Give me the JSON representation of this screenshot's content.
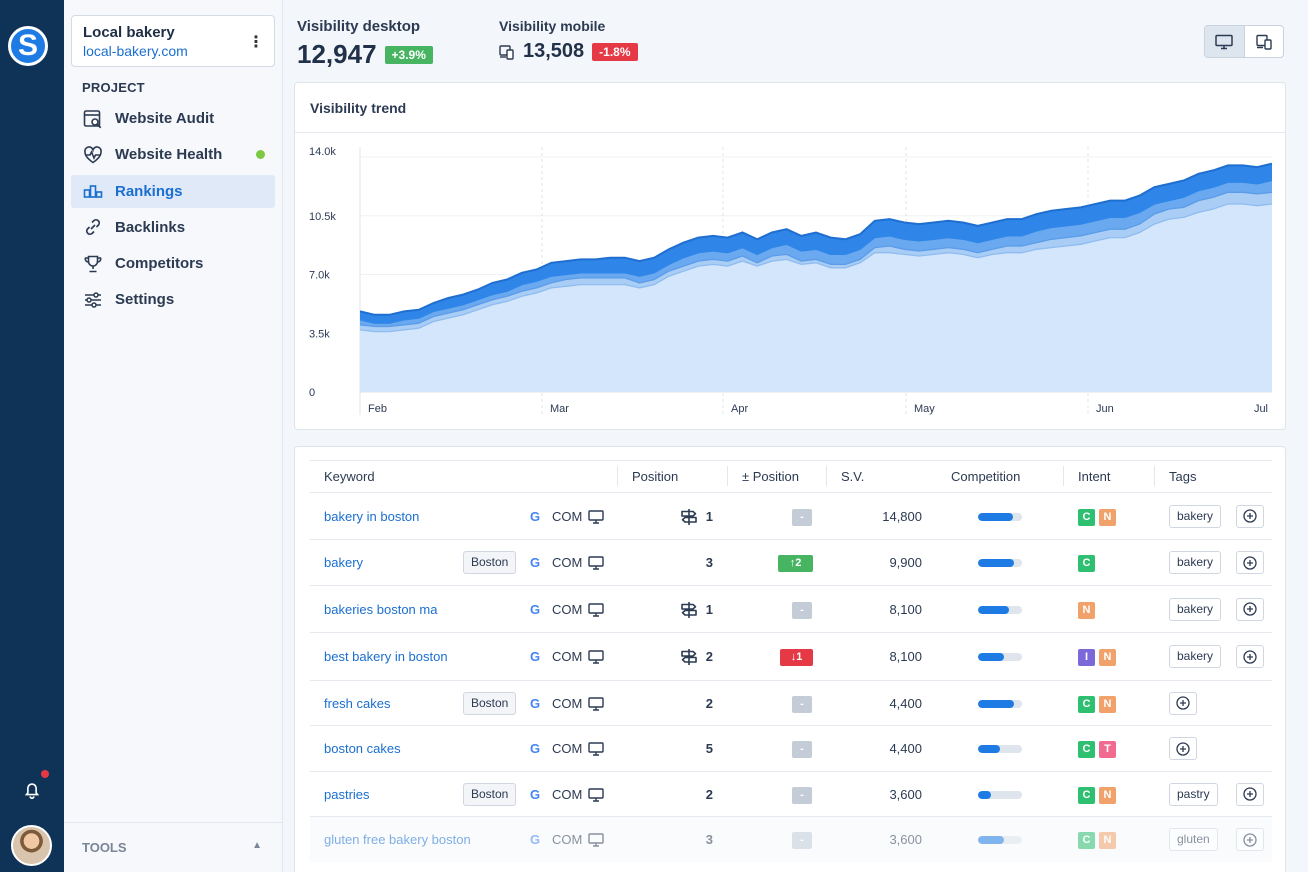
{
  "app": {
    "logo_letter": "S"
  },
  "project": {
    "name": "Local bakery",
    "url": "local-bakery.com"
  },
  "sidebar": {
    "section": "PROJECT",
    "items": [
      {
        "label": "Website Audit",
        "icon": "audit-icon"
      },
      {
        "label": "Website Health",
        "icon": "heartbeat-icon",
        "status": "green-dot"
      },
      {
        "label": "Rankings",
        "icon": "rankings-icon",
        "active": true
      },
      {
        "label": "Backlinks",
        "icon": "link-icon"
      },
      {
        "label": "Competitors",
        "icon": "trophy-icon"
      },
      {
        "label": "Settings",
        "icon": "sliders-icon"
      }
    ],
    "tools_label": "TOOLS"
  },
  "metrics": {
    "desktop": {
      "title": "Visibility desktop",
      "value": "12,947",
      "delta": "+3.9%"
    },
    "mobile": {
      "title": "Visibility mobile",
      "value": "13,508",
      "delta": "-1.8%"
    }
  },
  "colors": {
    "accent": "#1a6fd1",
    "up": "#47b462",
    "down": "#e63946",
    "intent_C": "#2fbf71",
    "intent_N": "#f0a26a",
    "intent_I": "#7c68d8",
    "intent_T": "#f06b8f"
  },
  "chart": {
    "title": "Visibility trend",
    "y_ticks": [
      "14.0k",
      "10.5k",
      "7.0k",
      "3.5k",
      "0"
    ],
    "x_ticks": [
      "Feb",
      "Mar",
      "Apr",
      "May",
      "Jun",
      "Jul"
    ]
  },
  "chart_data": {
    "type": "area",
    "title": "Visibility trend",
    "xlabel": "",
    "ylabel": "",
    "ylim": [
      0,
      14000
    ],
    "x_range": [
      "Feb",
      "Jul"
    ],
    "grid": true,
    "stacked": true,
    "series": [
      {
        "values": [
          3700,
          3600,
          3600,
          3700,
          3800,
          4200,
          4400,
          4600,
          4900,
          5200,
          5400,
          5700,
          5900,
          6200,
          6300,
          6400,
          6400,
          6400,
          6400,
          6200,
          6400,
          6900,
          7200,
          7500,
          7600,
          7500,
          7800,
          7500,
          7800,
          7900,
          7600,
          7700,
          7400,
          7400,
          7700,
          8300,
          8300,
          8200,
          8100,
          8200,
          8300,
          8200,
          8000,
          8200,
          8300,
          8300,
          8500,
          8600,
          8700,
          8800,
          9000,
          9200,
          9200,
          9500,
          10000,
          10300,
          10400,
          10700,
          10900,
          11200,
          11200,
          11100,
          11200
        ]
      },
      {
        "values": [
          4000,
          3900,
          3900,
          4000,
          4100,
          4500,
          4700,
          4900,
          5200,
          5500,
          5700,
          6000,
          6200,
          6500,
          6700,
          6800,
          6800,
          6800,
          6800,
          6500,
          6700,
          7200,
          7500,
          7800,
          7900,
          7800,
          8100,
          7700,
          8100,
          8200,
          7800,
          7900,
          7600,
          7600,
          7900,
          8600,
          8700,
          8500,
          8400,
          8500,
          8600,
          8500,
          8300,
          8500,
          8700,
          8700,
          8900,
          9100,
          9200,
          9300,
          9500,
          9700,
          9700,
          10000,
          10600,
          10900,
          11000,
          11400,
          11600,
          11900,
          11900,
          11800,
          11900
        ]
      },
      {
        "values": [
          4300,
          4100,
          4100,
          4300,
          4400,
          4800,
          5000,
          5200,
          5500,
          5800,
          6000,
          6400,
          6600,
          6900,
          7000,
          7100,
          7100,
          7100,
          7100,
          6900,
          7100,
          7600,
          8000,
          8300,
          8400,
          8300,
          8600,
          8200,
          8600,
          8800,
          8400,
          8500,
          8200,
          8200,
          8500,
          9200,
          9300,
          9100,
          9000,
          9100,
          9200,
          9100,
          8900,
          9100,
          9300,
          9300,
          9600,
          9800,
          9900,
          10000,
          10200,
          10400,
          10400,
          10700,
          11200,
          11400,
          11600,
          12000,
          12200,
          12500,
          12500,
          12400,
          12600
        ]
      },
      {
        "values": [
          4800,
          4600,
          4600,
          4800,
          4900,
          5300,
          5600,
          5800,
          6100,
          6500,
          6700,
          7100,
          7300,
          7700,
          7800,
          7900,
          7900,
          8000,
          8000,
          7800,
          8000,
          8500,
          8900,
          9200,
          9300,
          9200,
          9500,
          9100,
          9500,
          9700,
          9300,
          9500,
          9200,
          9100,
          9400,
          10200,
          10300,
          10100,
          10000,
          10100,
          10200,
          10100,
          9900,
          10100,
          10300,
          10300,
          10600,
          10800,
          10900,
          11000,
          11200,
          11400,
          11400,
          11700,
          12200,
          12400,
          12600,
          13000,
          13200,
          13500,
          13500,
          13400,
          13600
        ]
      }
    ]
  },
  "table": {
    "columns": [
      "Keyword",
      "Position",
      "± Position",
      "S.V.",
      "Competition",
      "Intent",
      "Tags"
    ],
    "rows": [
      {
        "keyword": "bakery in boston",
        "location": "",
        "engine": "G",
        "domain": "COM",
        "serp": true,
        "position": "1",
        "delta_type": "none",
        "delta": "-",
        "sv": "14,800",
        "competition": 0.8,
        "intent": [
          "C",
          "N"
        ],
        "tag": "bakery"
      },
      {
        "keyword": "bakery",
        "location": "Boston",
        "engine": "G",
        "domain": "COM",
        "serp": false,
        "position": "3",
        "delta_type": "up",
        "delta": "↑2",
        "sv": "9,900",
        "competition": 0.82,
        "intent": [
          "C"
        ],
        "tag": "bakery"
      },
      {
        "keyword": "bakeries boston ma",
        "location": "",
        "engine": "G",
        "domain": "COM",
        "serp": true,
        "position": "1",
        "delta_type": "none",
        "delta": "-",
        "sv": "8,100",
        "competition": 0.7,
        "intent": [
          "N"
        ],
        "tag": "bakery"
      },
      {
        "keyword": "best bakery in boston",
        "location": "",
        "engine": "G",
        "domain": "COM",
        "serp": true,
        "position": "2",
        "delta_type": "down",
        "delta": "↓1",
        "sv": "8,100",
        "competition": 0.6,
        "intent": [
          "I",
          "N"
        ],
        "tag": "bakery"
      },
      {
        "keyword": "fresh cakes",
        "location": "Boston",
        "engine": "G",
        "domain": "COM",
        "serp": false,
        "position": "2",
        "delta_type": "none",
        "delta": "-",
        "sv": "4,400",
        "competition": 0.82,
        "intent": [
          "C",
          "N"
        ],
        "tag": ""
      },
      {
        "keyword": "boston cakes",
        "location": "",
        "engine": "G",
        "domain": "COM",
        "serp": false,
        "position": "5",
        "delta_type": "none",
        "delta": "-",
        "sv": "4,400",
        "competition": 0.5,
        "intent": [
          "C",
          "T"
        ],
        "tag": ""
      },
      {
        "keyword": "pastries",
        "location": "Boston",
        "engine": "G",
        "domain": "COM",
        "serp": false,
        "position": "2",
        "delta_type": "none",
        "delta": "-",
        "sv": "3,600",
        "competition": 0.3,
        "intent": [
          "C",
          "N"
        ],
        "tag": "pastry"
      },
      {
        "keyword": "gluten free bakery boston",
        "location": "",
        "engine": "G",
        "domain": "COM",
        "serp": false,
        "position": "3",
        "delta_type": "none",
        "delta": "-",
        "sv": "3,600",
        "competition": 0.6,
        "intent": [
          "C",
          "N"
        ],
        "tag": "gluten",
        "faded": true
      }
    ]
  }
}
